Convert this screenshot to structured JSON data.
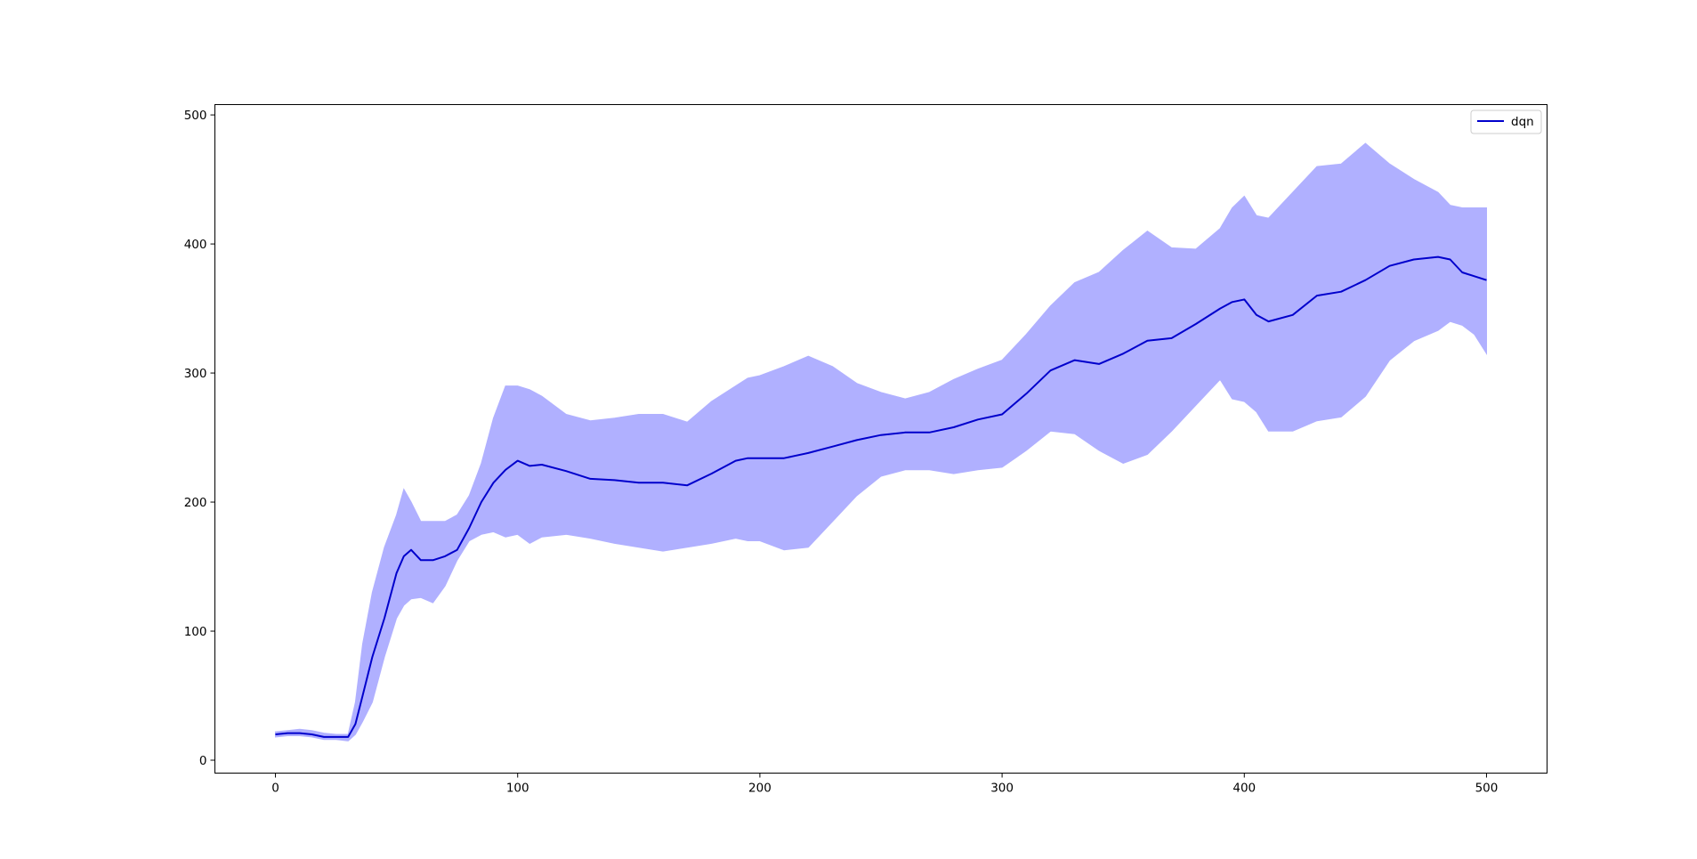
{
  "chart_data": {
    "type": "line",
    "title": "",
    "xlabel": "",
    "ylabel": "",
    "xlim": [
      -25,
      525
    ],
    "ylim": [
      -10,
      508
    ],
    "xticks": [
      0,
      100,
      200,
      300,
      400,
      500
    ],
    "yticks": [
      0,
      100,
      200,
      300,
      400,
      500
    ],
    "grid": false,
    "legend_position": "top-right",
    "series": [
      {
        "name": "dqn",
        "color": "#0000cc",
        "band_color": "#b0b0ff",
        "x": [
          0,
          5,
          10,
          15,
          20,
          25,
          30,
          33,
          36,
          40,
          45,
          50,
          53,
          56,
          60,
          65,
          70,
          75,
          80,
          85,
          90,
          95,
          100,
          105,
          110,
          120,
          130,
          140,
          150,
          160,
          170,
          180,
          190,
          195,
          200,
          210,
          220,
          230,
          240,
          250,
          260,
          270,
          280,
          290,
          300,
          310,
          320,
          330,
          340,
          350,
          360,
          370,
          380,
          390,
          395,
          400,
          405,
          410,
          420,
          430,
          440,
          450,
          460,
          470,
          480,
          485,
          490,
          495,
          500
        ],
        "mean": [
          20,
          21,
          21,
          20,
          18,
          18,
          18,
          28,
          50,
          80,
          110,
          145,
          158,
          163,
          155,
          155,
          158,
          163,
          180,
          200,
          215,
          225,
          232,
          228,
          229,
          224,
          218,
          217,
          215,
          215,
          213,
          222,
          232,
          234,
          234,
          234,
          238,
          243,
          248,
          252,
          254,
          254,
          258,
          264,
          268,
          284,
          302,
          310,
          307,
          315,
          325,
          327,
          338,
          350,
          355,
          357,
          345,
          340,
          345,
          360,
          363,
          372,
          383,
          388,
          390,
          388,
          378,
          375,
          372
        ],
        "upper": [
          22,
          23,
          24,
          23,
          21,
          20,
          20,
          45,
          90,
          130,
          165,
          190,
          210,
          200,
          185,
          185,
          185,
          190,
          205,
          230,
          265,
          290,
          290,
          287,
          282,
          268,
          263,
          265,
          268,
          268,
          262,
          278,
          290,
          296,
          298,
          305,
          313,
          305,
          292,
          285,
          280,
          285,
          295,
          303,
          310,
          330,
          352,
          370,
          378,
          395,
          410,
          397,
          396,
          412,
          428,
          437,
          422,
          420,
          440,
          460,
          462,
          478,
          462,
          450,
          440,
          430,
          428,
          428,
          428
        ],
        "lower": [
          18,
          19,
          19,
          18,
          16,
          16,
          15,
          20,
          30,
          45,
          80,
          110,
          120,
          125,
          126,
          122,
          135,
          155,
          170,
          175,
          177,
          173,
          175,
          168,
          173,
          175,
          172,
          168,
          165,
          162,
          165,
          168,
          172,
          170,
          170,
          163,
          165,
          185,
          205,
          220,
          225,
          225,
          222,
          225,
          227,
          240,
          255,
          253,
          240,
          230,
          237,
          255,
          275,
          295,
          280,
          278,
          270,
          255,
          255,
          263,
          266,
          282,
          310,
          325,
          333,
          340,
          337,
          330,
          315
        ]
      }
    ]
  }
}
